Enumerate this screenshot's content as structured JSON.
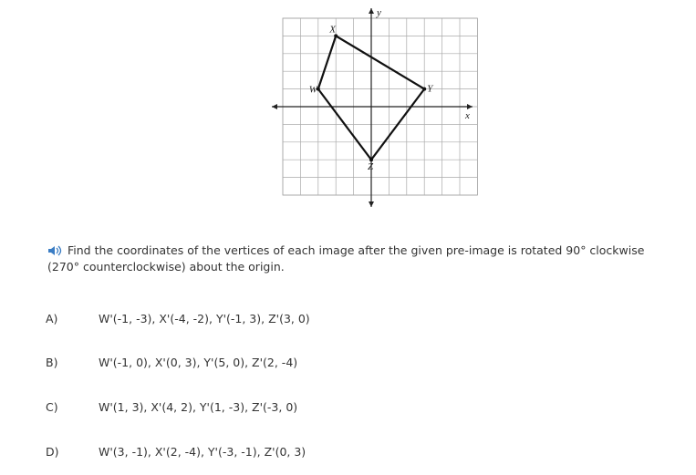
{
  "diagram": {
    "axis_labels": {
      "x": "x",
      "y": "y"
    },
    "vertices": [
      "W",
      "X",
      "Y",
      "Z"
    ]
  },
  "question": "Find the coordinates of the vertices of each image after the given pre-image is rotated 90° clockwise (270° counterclockwise) about the origin.",
  "choices": [
    {
      "letter": "A)",
      "text": "W'(-1, -3), X'(-4, -2), Y'(-1, 3), Z'(3, 0)"
    },
    {
      "letter": "B)",
      "text": "W'(-1, 0), X'(0, 3), Y'(5, 0), Z'(2, -4)"
    },
    {
      "letter": "C)",
      "text": "W'(1, 3), X'(4, 2), Y'(1, -3), Z'(-3, 0)"
    },
    {
      "letter": "D)",
      "text": "W'(3, -1), X'(2, -4), Y'(-3, -1), Z'(0, 3)"
    }
  ]
}
